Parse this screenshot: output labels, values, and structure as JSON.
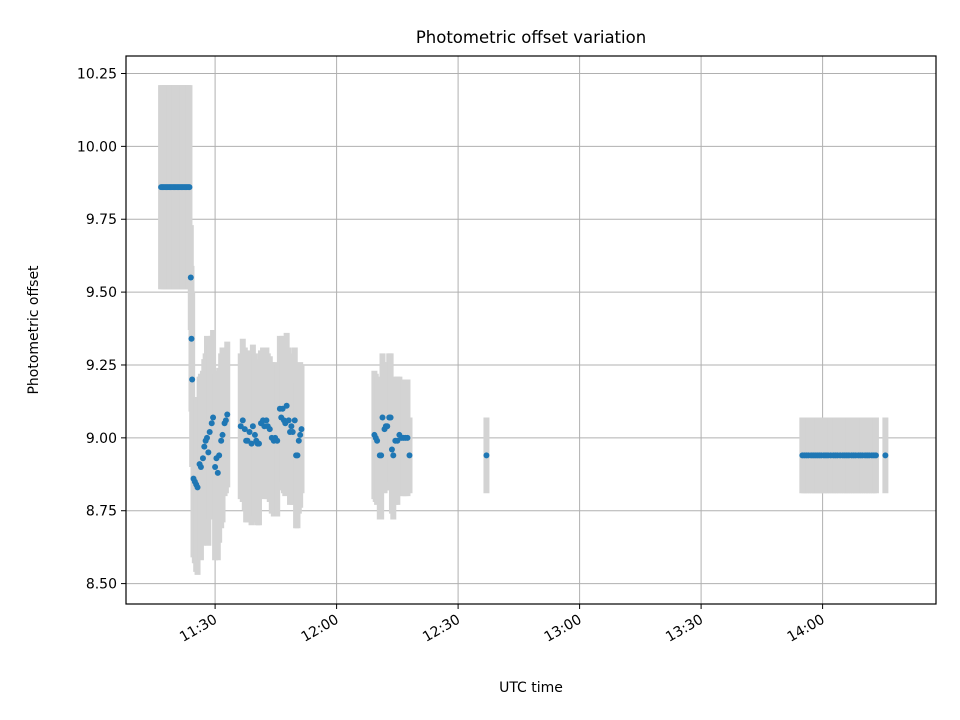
{
  "chart_data": {
    "type": "scatter",
    "title": "Photometric offset variation",
    "xlabel": "UTC time",
    "ylabel": "Photometric offset",
    "xlim": [
      "11:08",
      "14:28"
    ],
    "ylim": [
      8.43,
      10.31
    ],
    "grid": true,
    "x_ticks": [
      "11:30",
      "12:00",
      "12:30",
      "13:00",
      "13:30",
      "14:00"
    ],
    "y_ticks": [
      "8.50",
      "8.75",
      "9.00",
      "9.25",
      "9.50",
      "9.75",
      "10.00",
      "10.25"
    ],
    "colors": {
      "points": "#1f77b4",
      "errorbars": "#d3d3d3",
      "grid": "#b0b0b0"
    },
    "series": [
      {
        "points": [
          {
            "x": "11:16:40",
            "y": 9.86,
            "err": 0.35
          },
          {
            "x": "11:17:00",
            "y": 9.86,
            "err": 0.35
          },
          {
            "x": "11:17:20",
            "y": 9.86,
            "err": 0.35
          },
          {
            "x": "11:17:40",
            "y": 9.86,
            "err": 0.35
          },
          {
            "x": "11:18:00",
            "y": 9.86,
            "err": 0.35
          },
          {
            "x": "11:18:20",
            "y": 9.86,
            "err": 0.35
          },
          {
            "x": "11:18:40",
            "y": 9.86,
            "err": 0.35
          },
          {
            "x": "11:19:00",
            "y": 9.86,
            "err": 0.35
          },
          {
            "x": "11:19:20",
            "y": 9.86,
            "err": 0.35
          },
          {
            "x": "11:19:40",
            "y": 9.86,
            "err": 0.35
          },
          {
            "x": "11:20:00",
            "y": 9.86,
            "err": 0.35
          },
          {
            "x": "11:20:20",
            "y": 9.86,
            "err": 0.35
          },
          {
            "x": "11:20:40",
            "y": 9.86,
            "err": 0.35
          },
          {
            "x": "11:21:00",
            "y": 9.86,
            "err": 0.35
          },
          {
            "x": "11:21:20",
            "y": 9.86,
            "err": 0.35
          },
          {
            "x": "11:21:40",
            "y": 9.86,
            "err": 0.35
          },
          {
            "x": "11:22:00",
            "y": 9.86,
            "err": 0.35
          },
          {
            "x": "11:22:20",
            "y": 9.86,
            "err": 0.35
          },
          {
            "x": "11:22:40",
            "y": 9.86,
            "err": 0.35
          },
          {
            "x": "11:23:00",
            "y": 9.86,
            "err": 0.35
          },
          {
            "x": "11:23:20",
            "y": 9.86,
            "err": 0.35
          },
          {
            "x": "11:23:40",
            "y": 9.86,
            "err": 0.35
          },
          {
            "x": "11:24:00",
            "y": 9.55,
            "err": 0.18
          },
          {
            "x": "11:24:10",
            "y": 9.34,
            "err": 0.25
          },
          {
            "x": "11:24:20",
            "y": 9.2,
            "err": 0.3
          },
          {
            "x": "11:24:40",
            "y": 8.86,
            "err": 0.27
          },
          {
            "x": "11:25:00",
            "y": 8.85,
            "err": 0.28
          },
          {
            "x": "11:25:20",
            "y": 8.84,
            "err": 0.3
          },
          {
            "x": "11:25:40",
            "y": 8.83,
            "err": 0.3
          },
          {
            "x": "11:26:10",
            "y": 8.91,
            "err": 0.3
          },
          {
            "x": "11:26:30",
            "y": 8.9,
            "err": 0.32
          },
          {
            "x": "11:27:00",
            "y": 8.93,
            "err": 0.3
          },
          {
            "x": "11:27:20",
            "y": 8.97,
            "err": 0.3
          },
          {
            "x": "11:27:40",
            "y": 8.99,
            "err": 0.3
          },
          {
            "x": "11:28:00",
            "y": 9.0,
            "err": 0.35
          },
          {
            "x": "11:28:20",
            "y": 8.95,
            "err": 0.32
          },
          {
            "x": "11:28:40",
            "y": 9.02,
            "err": 0.3
          },
          {
            "x": "11:29:10",
            "y": 9.05,
            "err": 0.3
          },
          {
            "x": "11:29:30",
            "y": 9.07,
            "err": 0.3
          },
          {
            "x": "11:30:00",
            "y": 8.9,
            "err": 0.32
          },
          {
            "x": "11:30:20",
            "y": 8.93,
            "err": 0.3
          },
          {
            "x": "11:30:40",
            "y": 8.88,
            "err": 0.3
          },
          {
            "x": "11:31:00",
            "y": 8.94,
            "err": 0.3
          },
          {
            "x": "11:31:30",
            "y": 8.99,
            "err": 0.3
          },
          {
            "x": "11:31:50",
            "y": 9.01,
            "err": 0.3
          },
          {
            "x": "11:32:20",
            "y": 9.05,
            "err": 0.25
          },
          {
            "x": "11:32:40",
            "y": 9.06,
            "err": 0.25
          },
          {
            "x": "11:33:00",
            "y": 9.08,
            "err": 0.25
          },
          {
            "x": "11:36:20",
            "y": 9.04,
            "err": 0.25
          },
          {
            "x": "11:36:50",
            "y": 9.06,
            "err": 0.28
          },
          {
            "x": "11:37:20",
            "y": 9.03,
            "err": 0.28
          },
          {
            "x": "11:37:40",
            "y": 8.99,
            "err": 0.28
          },
          {
            "x": "11:38:00",
            "y": 8.99,
            "err": 0.28
          },
          {
            "x": "11:38:30",
            "y": 9.02,
            "err": 0.28
          },
          {
            "x": "11:39:00",
            "y": 8.98,
            "err": 0.28
          },
          {
            "x": "11:39:20",
            "y": 9.04,
            "err": 0.28
          },
          {
            "x": "11:39:50",
            "y": 9.01,
            "err": 0.28
          },
          {
            "x": "11:40:10",
            "y": 8.99,
            "err": 0.28
          },
          {
            "x": "11:40:30",
            "y": 8.98,
            "err": 0.28
          },
          {
            "x": "11:40:50",
            "y": 8.98,
            "err": 0.28
          },
          {
            "x": "11:41:20",
            "y": 9.05,
            "err": 0.25
          },
          {
            "x": "11:41:50",
            "y": 9.06,
            "err": 0.25
          },
          {
            "x": "11:42:10",
            "y": 9.04,
            "err": 0.25
          },
          {
            "x": "11:42:40",
            "y": 9.06,
            "err": 0.25
          },
          {
            "x": "11:43:00",
            "y": 9.04,
            "err": 0.25
          },
          {
            "x": "11:43:30",
            "y": 9.03,
            "err": 0.25
          },
          {
            "x": "11:44:00",
            "y": 9.0,
            "err": 0.26
          },
          {
            "x": "11:44:30",
            "y": 8.99,
            "err": 0.26
          },
          {
            "x": "11:44:50",
            "y": 9.0,
            "err": 0.26
          },
          {
            "x": "11:45:20",
            "y": 8.99,
            "err": 0.26
          },
          {
            "x": "11:46:00",
            "y": 9.1,
            "err": 0.25
          },
          {
            "x": "11:46:20",
            "y": 9.07,
            "err": 0.25
          },
          {
            "x": "11:46:40",
            "y": 9.1,
            "err": 0.25
          },
          {
            "x": "11:47:00",
            "y": 9.06,
            "err": 0.25
          },
          {
            "x": "11:47:20",
            "y": 9.05,
            "err": 0.25
          },
          {
            "x": "11:47:40",
            "y": 9.11,
            "err": 0.25
          },
          {
            "x": "11:48:10",
            "y": 9.06,
            "err": 0.25
          },
          {
            "x": "11:48:30",
            "y": 9.02,
            "err": 0.25
          },
          {
            "x": "11:48:50",
            "y": 9.04,
            "err": 0.25
          },
          {
            "x": "11:49:10",
            "y": 9.02,
            "err": 0.25
          },
          {
            "x": "11:49:40",
            "y": 9.06,
            "err": 0.25
          },
          {
            "x": "11:50:00",
            "y": 8.94,
            "err": 0.25
          },
          {
            "x": "11:50:20",
            "y": 8.94,
            "err": 0.25
          },
          {
            "x": "11:50:40",
            "y": 8.99,
            "err": 0.25
          },
          {
            "x": "11:51:00",
            "y": 9.01,
            "err": 0.25
          },
          {
            "x": "11:51:20",
            "y": 9.03,
            "err": 0.22
          },
          {
            "x": "12:09:20",
            "y": 9.01,
            "err": 0.22
          },
          {
            "x": "12:09:40",
            "y": 9.0,
            "err": 0.22
          },
          {
            "x": "12:10:00",
            "y": 8.99,
            "err": 0.22
          },
          {
            "x": "12:10:40",
            "y": 8.94,
            "err": 0.22
          },
          {
            "x": "12:11:00",
            "y": 8.94,
            "err": 0.22
          },
          {
            "x": "12:11:20",
            "y": 9.07,
            "err": 0.22
          },
          {
            "x": "12:11:50",
            "y": 9.03,
            "err": 0.22
          },
          {
            "x": "12:12:10",
            "y": 9.04,
            "err": 0.22
          },
          {
            "x": "12:12:30",
            "y": 9.04,
            "err": 0.22
          },
          {
            "x": "12:13:00",
            "y": 9.07,
            "err": 0.22
          },
          {
            "x": "12:13:20",
            "y": 9.07,
            "err": 0.22
          },
          {
            "x": "12:13:40",
            "y": 8.96,
            "err": 0.22
          },
          {
            "x": "12:14:00",
            "y": 8.94,
            "err": 0.22
          },
          {
            "x": "12:14:30",
            "y": 8.99,
            "err": 0.22
          },
          {
            "x": "12:15:00",
            "y": 8.99,
            "err": 0.22
          },
          {
            "x": "12:15:30",
            "y": 9.01,
            "err": 0.2
          },
          {
            "x": "12:16:00",
            "y": 9.0,
            "err": 0.2
          },
          {
            "x": "12:16:30",
            "y": 9.0,
            "err": 0.2
          },
          {
            "x": "12:17:00",
            "y": 9.0,
            "err": 0.2
          },
          {
            "x": "12:17:30",
            "y": 9.0,
            "err": 0.2
          },
          {
            "x": "12:18:00",
            "y": 8.94,
            "err": 0.13
          },
          {
            "x": "12:37:00",
            "y": 8.94,
            "err": 0.13
          },
          {
            "x": "13:55:00",
            "y": 8.94,
            "err": 0.13
          },
          {
            "x": "13:55:30",
            "y": 8.94,
            "err": 0.13
          },
          {
            "x": "13:56:00",
            "y": 8.94,
            "err": 0.13
          },
          {
            "x": "13:56:30",
            "y": 8.94,
            "err": 0.13
          },
          {
            "x": "13:57:10",
            "y": 8.94,
            "err": 0.13
          },
          {
            "x": "13:57:40",
            "y": 8.94,
            "err": 0.13
          },
          {
            "x": "13:58:10",
            "y": 8.94,
            "err": 0.13
          },
          {
            "x": "13:58:40",
            "y": 8.94,
            "err": 0.13
          },
          {
            "x": "13:59:10",
            "y": 8.94,
            "err": 0.13
          },
          {
            "x": "13:59:40",
            "y": 8.94,
            "err": 0.13
          },
          {
            "x": "14:00:20",
            "y": 8.94,
            "err": 0.13
          },
          {
            "x": "14:00:50",
            "y": 8.94,
            "err": 0.13
          },
          {
            "x": "14:01:20",
            "y": 8.94,
            "err": 0.13
          },
          {
            "x": "14:02:00",
            "y": 8.94,
            "err": 0.13
          },
          {
            "x": "14:02:40",
            "y": 8.94,
            "err": 0.13
          },
          {
            "x": "14:03:10",
            "y": 8.94,
            "err": 0.13
          },
          {
            "x": "14:03:40",
            "y": 8.94,
            "err": 0.13
          },
          {
            "x": "14:04:20",
            "y": 8.94,
            "err": 0.13
          },
          {
            "x": "14:05:00",
            "y": 8.94,
            "err": 0.13
          },
          {
            "x": "14:05:30",
            "y": 8.94,
            "err": 0.13
          },
          {
            "x": "14:06:00",
            "y": 8.94,
            "err": 0.13
          },
          {
            "x": "14:06:30",
            "y": 8.94,
            "err": 0.13
          },
          {
            "x": "14:07:10",
            "y": 8.94,
            "err": 0.13
          },
          {
            "x": "14:07:40",
            "y": 8.94,
            "err": 0.13
          },
          {
            "x": "14:08:10",
            "y": 8.94,
            "err": 0.13
          },
          {
            "x": "14:08:50",
            "y": 8.94,
            "err": 0.13
          },
          {
            "x": "14:09:20",
            "y": 8.94,
            "err": 0.13
          },
          {
            "x": "14:09:50",
            "y": 8.94,
            "err": 0.13
          },
          {
            "x": "14:10:30",
            "y": 8.94,
            "err": 0.13
          },
          {
            "x": "14:11:00",
            "y": 8.94,
            "err": 0.13
          },
          {
            "x": "14:11:30",
            "y": 8.94,
            "err": 0.13
          },
          {
            "x": "14:12:10",
            "y": 8.94,
            "err": 0.13
          },
          {
            "x": "14:12:40",
            "y": 8.94,
            "err": 0.13
          },
          {
            "x": "14:13:10",
            "y": 8.94,
            "err": 0.13
          },
          {
            "x": "14:15:30",
            "y": 8.94,
            "err": 0.13
          }
        ]
      }
    ]
  }
}
